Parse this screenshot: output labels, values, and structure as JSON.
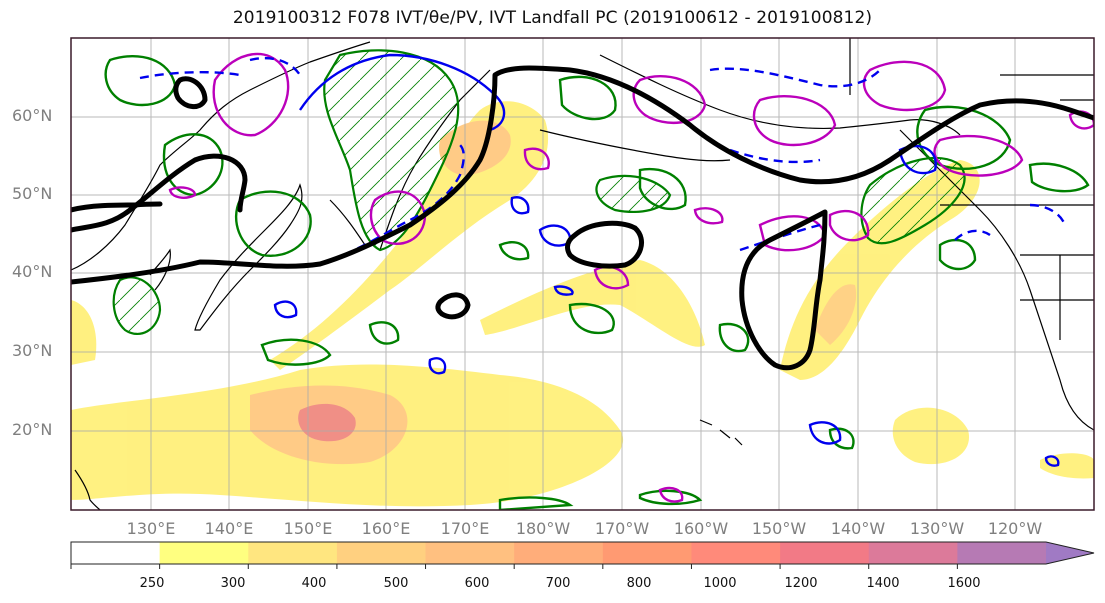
{
  "title": "2019100312 F078 IVT/θe/PV, IVT Landfall PC (2019100612 - 2019100812)",
  "lat_labels": [
    "60°N",
    "50°N",
    "40°N",
    "30°N",
    "20°N"
  ],
  "lat_values": [
    60,
    50,
    40,
    30,
    20
  ],
  "lon_labels": [
    "130°E",
    "140°E",
    "150°E",
    "160°E",
    "170°E",
    "180°W",
    "170°W",
    "160°W",
    "150°W",
    "140°W",
    "130°W",
    "120°W"
  ],
  "lon_values": [
    130,
    140,
    150,
    160,
    170,
    180,
    190,
    200,
    210,
    220,
    230,
    240
  ],
  "map_extent": {
    "lon_min": 120,
    "lon_max": 247,
    "lat_min": 10,
    "lat_max": 70
  },
  "colorbar": {
    "ticks": [
      "250",
      "300",
      "400",
      "500",
      "600",
      "700",
      "800",
      "1000",
      "1200",
      "1400",
      "1600"
    ],
    "colors": [
      "#ffffff",
      "#ffff80",
      "#ffe680",
      "#ffd080",
      "#ffc080",
      "#ffad7a",
      "#ff9a72",
      "#ff8a7a",
      "#f27a86",
      "#dc7a9a",
      "#b67ab4",
      "#a07ac4"
    ],
    "extend": "max"
  },
  "line_colors": {
    "theta_e": "#000000",
    "pv": "#0000ff",
    "pc_positive": "#008000",
    "pc_negative": "#bb00bb"
  }
}
